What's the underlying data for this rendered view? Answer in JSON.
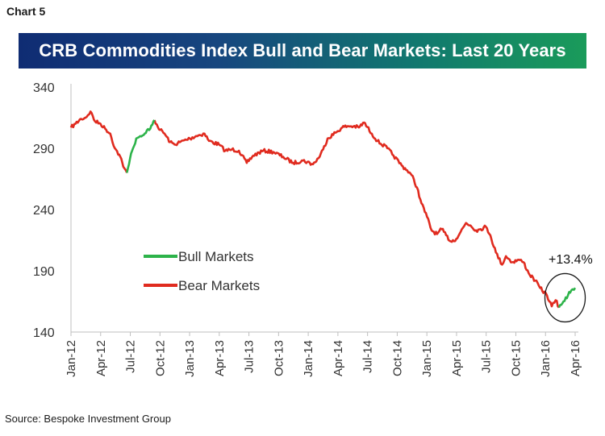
{
  "header": {
    "chart_label": "Chart 5"
  },
  "banner": {
    "title": "CRB Commodities Index Bull and Bear Markets: Last 20 Years"
  },
  "footer": {
    "source": "Source: Bespoke Investment Group"
  },
  "colors": {
    "bull": "#2db34a",
    "bear": "#e02b1f",
    "axis": "#bfbfbf",
    "circle": "#1a1a1a"
  },
  "chart_data": {
    "type": "line",
    "ylim": [
      140,
      340
    ],
    "yticks": [
      "340",
      "290",
      "240",
      "190",
      "140"
    ],
    "ytick_values": [
      340,
      290,
      240,
      190,
      140
    ],
    "xticks": [
      "Jan-12",
      "Apr-12",
      "Jul-12",
      "Oct-12",
      "Jan-13",
      "Apr-13",
      "Jul-13",
      "Oct-13",
      "Jan-14",
      "Apr-14",
      "Jul-14",
      "Oct-14",
      "Jan-15",
      "Apr-15",
      "Jul-15",
      "Oct-15",
      "Jan-16",
      "Apr-16"
    ],
    "grid": false,
    "legend_position": "center-left",
    "annotation": "+13.4%",
    "series": [
      {
        "name": "Bull Markets",
        "color": "#2db34a",
        "points": [
          [
            "2012-06-21",
            270
          ],
          [
            "2012-07-01",
            282
          ],
          [
            "2012-07-10",
            290
          ],
          [
            "2012-07-20",
            298
          ],
          [
            "2012-08-01",
            300
          ],
          [
            "2012-08-15",
            302
          ],
          [
            "2012-09-01",
            306
          ],
          [
            "2012-09-14",
            313
          ]
        ]
      },
      {
        "name": "Bear Markets",
        "color": "#e02b1f",
        "points": [
          [
            "2012-01-01",
            307
          ],
          [
            "2012-01-15",
            310
          ],
          [
            "2012-02-01",
            314
          ],
          [
            "2012-02-15",
            315
          ],
          [
            "2012-03-01",
            320
          ],
          [
            "2012-03-15",
            312
          ],
          [
            "2012-04-01",
            310
          ],
          [
            "2012-04-15",
            306
          ],
          [
            "2012-05-01",
            302
          ],
          [
            "2012-05-15",
            290
          ],
          [
            "2012-06-01",
            283
          ],
          [
            "2012-06-10",
            275
          ],
          [
            "2012-06-21",
            270
          ]
        ]
      },
      {
        "name": "",
        "color": "#e02b1f",
        "points": [
          [
            "2012-09-14",
            313
          ],
          [
            "2012-10-01",
            305
          ],
          [
            "2012-10-15",
            302
          ],
          [
            "2012-11-01",
            295
          ],
          [
            "2012-11-15",
            293
          ],
          [
            "2012-12-01",
            295
          ],
          [
            "2013-01-01",
            298
          ],
          [
            "2013-01-20",
            300
          ],
          [
            "2013-02-15",
            302
          ],
          [
            "2013-03-01",
            296
          ],
          [
            "2013-04-01",
            293
          ],
          [
            "2013-04-20",
            288
          ],
          [
            "2013-05-10",
            289
          ],
          [
            "2013-06-01",
            288
          ],
          [
            "2013-06-25",
            278
          ],
          [
            "2013-07-15",
            284
          ],
          [
            "2013-08-15",
            288
          ],
          [
            "2013-09-15",
            287
          ],
          [
            "2013-10-15",
            283
          ],
          [
            "2013-11-15",
            278
          ],
          [
            "2013-12-15",
            280
          ],
          [
            "2014-01-15",
            277
          ],
          [
            "2014-02-01",
            282
          ],
          [
            "2014-02-15",
            289
          ],
          [
            "2014-03-01",
            298
          ],
          [
            "2014-04-01",
            304
          ],
          [
            "2014-04-15",
            307
          ],
          [
            "2014-05-01",
            308
          ],
          [
            "2014-05-20",
            308
          ],
          [
            "2014-06-05",
            307
          ],
          [
            "2014-06-21",
            311
          ],
          [
            "2014-07-15",
            302
          ],
          [
            "2014-08-01",
            296
          ],
          [
            "2014-09-01",
            290
          ],
          [
            "2014-09-20",
            284
          ],
          [
            "2014-10-15",
            276
          ],
          [
            "2014-11-01",
            272
          ],
          [
            "2014-11-15",
            268
          ],
          [
            "2014-12-01",
            258
          ],
          [
            "2014-12-15",
            245
          ],
          [
            "2015-01-01",
            234
          ],
          [
            "2015-01-15",
            223
          ],
          [
            "2015-02-01",
            220
          ],
          [
            "2015-02-15",
            224
          ],
          [
            "2015-03-01",
            219
          ],
          [
            "2015-03-15",
            214
          ],
          [
            "2015-04-01",
            216
          ],
          [
            "2015-04-15",
            222
          ],
          [
            "2015-05-01",
            229
          ],
          [
            "2015-05-15",
            227
          ],
          [
            "2015-06-01",
            223
          ],
          [
            "2015-06-15",
            224
          ],
          [
            "2015-07-01",
            226
          ],
          [
            "2015-07-15",
            219
          ],
          [
            "2015-08-01",
            205
          ],
          [
            "2015-08-20",
            195
          ],
          [
            "2015-09-01",
            202
          ],
          [
            "2015-09-20",
            197
          ],
          [
            "2015-10-10",
            199
          ],
          [
            "2015-10-25",
            197
          ],
          [
            "2015-11-10",
            188
          ],
          [
            "2015-11-30",
            182
          ],
          [
            "2015-12-15",
            176
          ],
          [
            "2016-01-05",
            170
          ],
          [
            "2016-01-20",
            161
          ],
          [
            "2016-02-01",
            166
          ],
          [
            "2016-02-11",
            160
          ]
        ]
      },
      {
        "name": "",
        "color": "#2db34a",
        "points": [
          [
            "2016-02-11",
            160
          ],
          [
            "2016-02-25",
            165
          ],
          [
            "2016-03-10",
            170
          ],
          [
            "2016-03-20",
            174
          ],
          [
            "2016-04-01",
            176
          ]
        ]
      }
    ]
  }
}
